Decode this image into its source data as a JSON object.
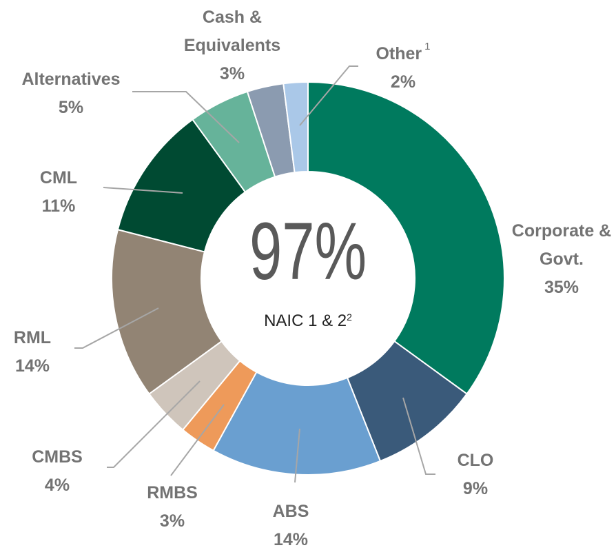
{
  "chart_data": {
    "type": "pie",
    "donut": true,
    "categories": [
      "Corporate & Govt.",
      "CLO",
      "ABS",
      "RMBS",
      "CMBS",
      "RML",
      "CML",
      "Alternatives",
      "Cash & Equivalents",
      "Other"
    ],
    "category_notes": {
      "Other": "1"
    },
    "values": [
      35,
      9,
      14,
      3,
      4,
      14,
      11,
      5,
      3,
      2
    ],
    "value_labels": [
      "35%",
      "9%",
      "14%",
      "3%",
      "4%",
      "14%",
      "11%",
      "5%",
      "3%",
      "2%"
    ],
    "colors": [
      "#007a5e",
      "#3a5a7a",
      "#6a9fd0",
      "#ee9a5a",
      "#cfc5bb",
      "#928474",
      "#004a32",
      "#66b39a",
      "#8b9bb0",
      "#aac8e8"
    ],
    "center": {
      "value": 97,
      "label": "97%",
      "caption": "NAIC 1 & 2",
      "caption_note": "2"
    }
  }
}
